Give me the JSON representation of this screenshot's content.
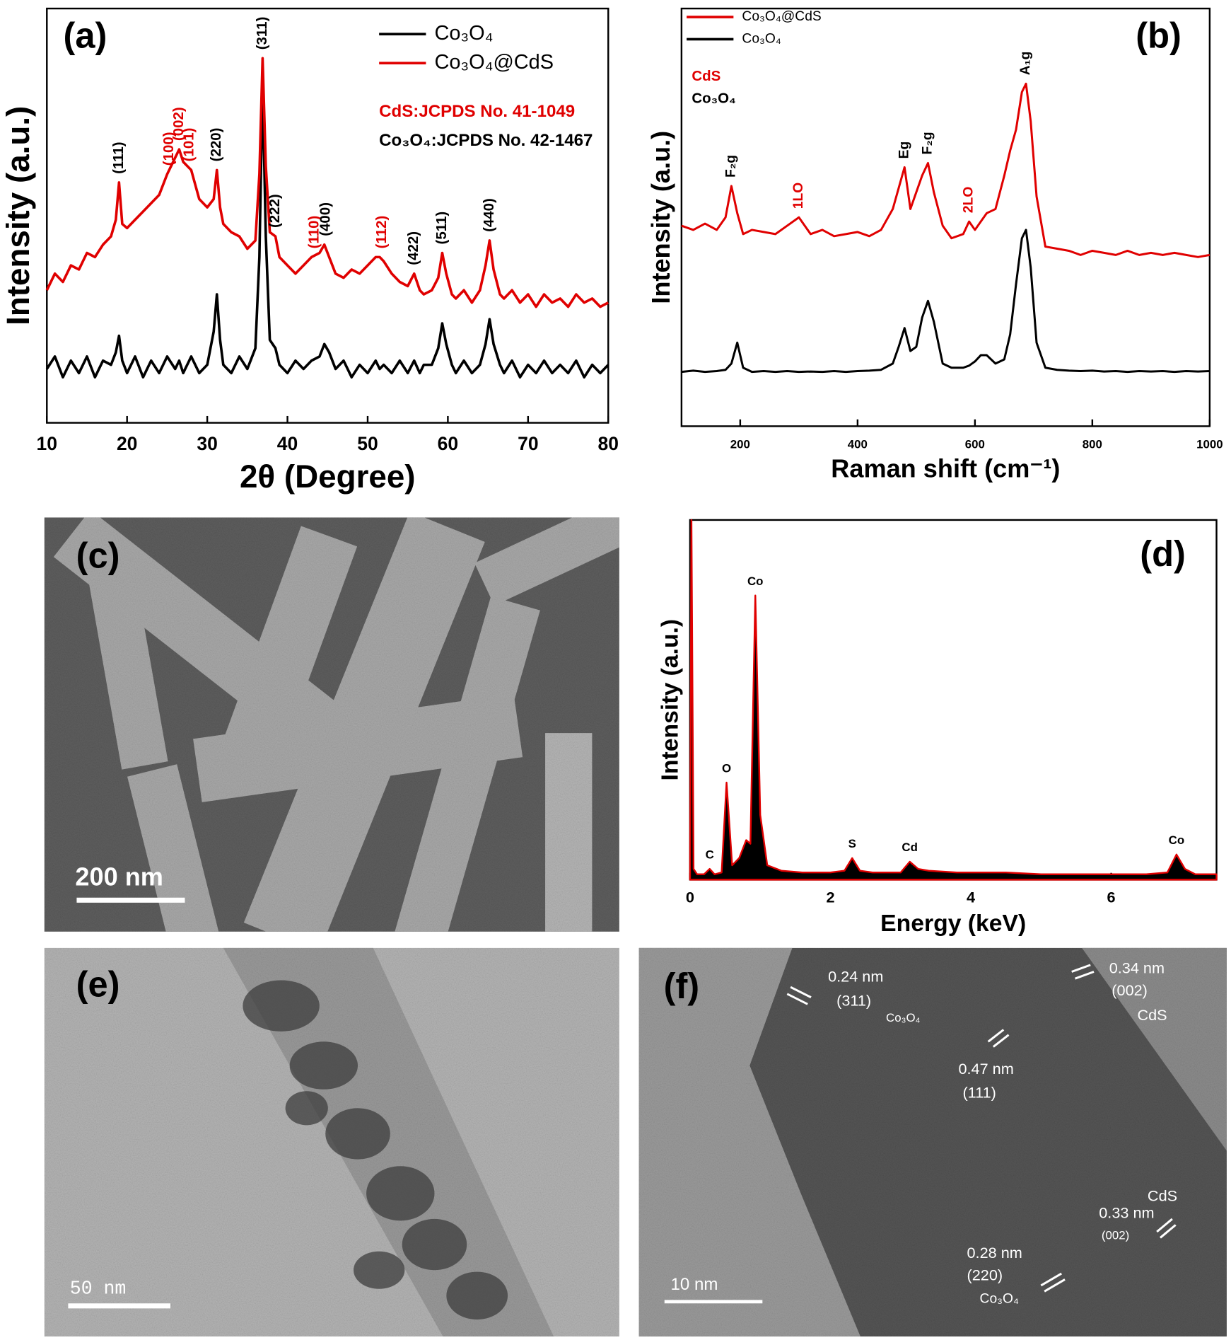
{
  "chart_data": [
    {
      "type": "line",
      "label": "(a)",
      "xlabel": "2θ (Degree)",
      "ylabel": "Intensity (a.u.)",
      "xlim": [
        10,
        80
      ],
      "xticks": [
        10,
        20,
        30,
        40,
        50,
        60,
        70,
        80
      ],
      "ylim": [
        0,
        100
      ],
      "legend": "top-right",
      "x": [
        10,
        11,
        12,
        13,
        14,
        15,
        16,
        17,
        18,
        18.6,
        19,
        19.4,
        20,
        21,
        22,
        23,
        24,
        25,
        26,
        26.5,
        27,
        28,
        29,
        30,
        30.8,
        31.2,
        31.6,
        32,
        33,
        34,
        35,
        36,
        36.5,
        36.9,
        37.3,
        37.8,
        38.5,
        39,
        40,
        41,
        42,
        43,
        44,
        44.6,
        45.2,
        46,
        47,
        48,
        49,
        50,
        51,
        51.5,
        52,
        53,
        54,
        55,
        55.8,
        56.5,
        57,
        58,
        58.8,
        59.3,
        59.8,
        60.5,
        61,
        62,
        63,
        64,
        64.7,
        65.2,
        65.7,
        66.5,
        67,
        68,
        69,
        70,
        71,
        72,
        73,
        74,
        75,
        76,
        77,
        78,
        79,
        80
      ],
      "series": [
        {
          "name": "Co₃O₄",
          "color": "#000000",
          "values": [
            13,
            16,
            11,
            15,
            12,
            16,
            11,
            15,
            14,
            17,
            21,
            15,
            12,
            16,
            11,
            15,
            12,
            16,
            13,
            15,
            12,
            16,
            12,
            14,
            22,
            31,
            20,
            14,
            12,
            16,
            13,
            18,
            40,
            82,
            45,
            20,
            18,
            14,
            12,
            15,
            13,
            15,
            16,
            19,
            17,
            13,
            15,
            11,
            14,
            12,
            15,
            13,
            14,
            12,
            15,
            12,
            15,
            12,
            14,
            14,
            18,
            24,
            19,
            14,
            12,
            15,
            12,
            14,
            19,
            25,
            19,
            14,
            12,
            15,
            11,
            14,
            12,
            15,
            12,
            14,
            12,
            15,
            11,
            14,
            12,
            14
          ]
        },
        {
          "name": "Co₃O₄@CdS",
          "color": "#e00000",
          "values": [
            32,
            36,
            34,
            38,
            37,
            41,
            40,
            43,
            45,
            49,
            58,
            48,
            47,
            49,
            51,
            53,
            55,
            60,
            64,
            66,
            63,
            61,
            54,
            52,
            54,
            61,
            52,
            48,
            46,
            45,
            42,
            44,
            60,
            88,
            62,
            46,
            45,
            40,
            38,
            36,
            38,
            40,
            41,
            43,
            40,
            36,
            35,
            37,
            36,
            38,
            40,
            40,
            39,
            36,
            34,
            33,
            36,
            32,
            31,
            32,
            35,
            41,
            36,
            31,
            30,
            32,
            29,
            32,
            38,
            44,
            37,
            31,
            30,
            32,
            29,
            31,
            28,
            31,
            29,
            30,
            28,
            31,
            29,
            30,
            28,
            29
          ]
        }
      ],
      "notes": [
        {
          "text": "CdS:JCPDS No. 41-1049",
          "color": "#e00000"
        },
        {
          "text": "Co₃O₄:JCPDS No. 42-1467",
          "color": "#000000"
        }
      ],
      "annotations": [
        {
          "text": "(111)",
          "x": 19,
          "color": "#000000"
        },
        {
          "text": "(100)",
          "x": 25.3,
          "color": "#e00000"
        },
        {
          "text": "(002)",
          "x": 26.5,
          "color": "#e00000"
        },
        {
          "text": "(101)",
          "x": 27.8,
          "color": "#e00000"
        },
        {
          "text": "(220)",
          "x": 31.2,
          "color": "#000000"
        },
        {
          "text": "(311)",
          "x": 36.9,
          "color": "#000000"
        },
        {
          "text": "(222)",
          "x": 38.5,
          "color": "#000000"
        },
        {
          "text": "(110)",
          "x": 43.4,
          "color": "#e00000"
        },
        {
          "text": "(400)",
          "x": 44.8,
          "color": "#000000"
        },
        {
          "text": "(112)",
          "x": 51.8,
          "color": "#e00000"
        },
        {
          "text": "(422)",
          "x": 55.8,
          "color": "#000000"
        },
        {
          "text": "(511)",
          "x": 59.3,
          "color": "#000000"
        },
        {
          "text": "(440)",
          "x": 65.2,
          "color": "#000000"
        }
      ]
    },
    {
      "type": "line",
      "label": "(b)",
      "xlabel": "Raman shift (cm⁻¹)",
      "ylabel": "Intensity (a.u.)",
      "xlim": [
        100,
        1000
      ],
      "xticks": [
        200,
        400,
        600,
        800,
        1000
      ],
      "ylim": [
        0,
        100
      ],
      "legend": "top-left",
      "x": [
        100,
        120,
        140,
        160,
        175,
        185,
        195,
        205,
        220,
        240,
        260,
        280,
        300,
        320,
        340,
        360,
        380,
        400,
        420,
        440,
        460,
        470,
        480,
        490,
        500,
        510,
        520,
        530,
        545,
        560,
        580,
        590,
        600,
        610,
        620,
        635,
        650,
        660,
        670,
        680,
        687,
        695,
        705,
        720,
        740,
        760,
        780,
        800,
        820,
        840,
        860,
        880,
        900,
        920,
        940,
        960,
        980,
        1000
      ],
      "series": [
        {
          "name": "Co₃O₄@CdS",
          "color": "#e00000",
          "values": [
            48,
            47,
            48.5,
            47,
            50,
            57.5,
            51,
            46,
            47,
            46.5,
            46,
            48,
            50,
            46,
            47,
            45.5,
            46,
            46.5,
            45.5,
            47,
            52,
            57,
            62,
            52,
            56,
            60,
            63,
            56,
            48,
            45,
            46,
            49,
            47,
            49,
            51,
            52,
            60,
            66,
            71,
            80,
            82,
            73,
            55,
            43,
            42.5,
            42,
            41,
            42,
            41.5,
            41,
            42,
            41,
            41.5,
            41,
            41.5,
            41,
            40.5,
            41
          ]
        },
        {
          "name": "Co₃O₄",
          "color": "#000000",
          "values": [
            13,
            13.3,
            13,
            13.2,
            13.5,
            15,
            20,
            14,
            13,
            13.2,
            13,
            13.2,
            13,
            13.1,
            13,
            13.2,
            13,
            13.2,
            13.3,
            13.5,
            15,
            19,
            23.5,
            18,
            19,
            26,
            30,
            25,
            15,
            14,
            14,
            14.5,
            15.5,
            17,
            17,
            15,
            16,
            22,
            34,
            45,
            47,
            38,
            20,
            14,
            13.5,
            13.3,
            13.2,
            13.3,
            13.1,
            13.2,
            13,
            13.2,
            13.1,
            13.2,
            13,
            13.2,
            13.1,
            13.2
          ]
        }
      ],
      "notes": [
        {
          "text": "CdS",
          "color": "#e00000"
        },
        {
          "text": "Co₃O₄",
          "color": "#000000"
        }
      ],
      "annotations": [
        {
          "text": "F₂g",
          "x": 185,
          "color": "#000000"
        },
        {
          "text": "1LO",
          "x": 300,
          "color": "#e00000"
        },
        {
          "text": "Eg",
          "x": 480,
          "color": "#000000"
        },
        {
          "text": "F₂g",
          "x": 520,
          "color": "#000000"
        },
        {
          "text": "2LO",
          "x": 590,
          "color": "#e00000"
        },
        {
          "text": "A₁g",
          "x": 687,
          "color": "#000000"
        }
      ]
    },
    {
      "type": "area",
      "label": "(d)",
      "xlabel": "Energy (keV)",
      "ylabel": "Intensity (a.u.)",
      "xlim": [
        0,
        7.5
      ],
      "xticks": [
        0,
        2,
        4,
        6
      ],
      "ylim": [
        0,
        100
      ],
      "fill": "#000000",
      "x": [
        0,
        0.02,
        0.05,
        0.1,
        0.2,
        0.28,
        0.35,
        0.45,
        0.52,
        0.6,
        0.7,
        0.8,
        0.86,
        0.93,
        1.0,
        1.1,
        1.3,
        1.6,
        2.0,
        2.2,
        2.31,
        2.42,
        2.6,
        3.0,
        3.13,
        3.25,
        3.4,
        3.8,
        4.5,
        5.0,
        5.5,
        6.0,
        6.5,
        6.8,
        6.93,
        7.05,
        7.2,
        7.5
      ],
      "series": [
        {
          "color": "#e00000",
          "values": [
            0,
            100,
            3,
            1.5,
            1.5,
            3,
            1.5,
            2,
            27,
            4,
            6,
            11,
            10,
            79,
            18,
            4,
            2.5,
            2,
            2,
            2.5,
            6,
            2.5,
            2,
            2,
            5,
            3,
            2.5,
            2,
            2,
            1.5,
            1.5,
            1.5,
            1.5,
            2,
            7,
            3,
            1.5,
            1.5
          ]
        }
      ],
      "annotations": [
        {
          "text": "C",
          "x": 0.28,
          "color": "#000000"
        },
        {
          "text": "O",
          "x": 0.52,
          "color": "#000000"
        },
        {
          "text": "Co",
          "x": 0.93,
          "color": "#000000"
        },
        {
          "text": "S",
          "x": 2.31,
          "color": "#000000"
        },
        {
          "text": "Cd",
          "x": 3.13,
          "color": "#000000"
        },
        {
          "text": "Co",
          "x": 6.93,
          "color": "#000000"
        }
      ]
    }
  ],
  "images": [
    {
      "label": "(c)",
      "scale_bar": "200 nm"
    },
    {
      "label": "(e)",
      "scale_bar": "50 nm"
    },
    {
      "label": "(f)",
      "scale_bar": "10 nm",
      "annotations": [
        "0.24 nm",
        "(311)",
        "Co₃O₄",
        "0.34 nm",
        "(002)",
        "CdS",
        "0.47 nm",
        "(111)",
        "CdS",
        "0.33 nm",
        "(002)",
        "0.28 nm",
        "(220)",
        "Co₃O₄"
      ]
    }
  ]
}
